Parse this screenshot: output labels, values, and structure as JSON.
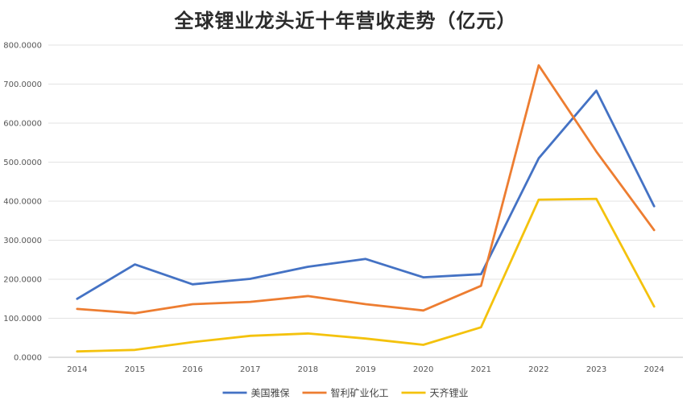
{
  "chart_data": {
    "type": "line",
    "title": "全球锂业龙头近十年营收走势（亿元）",
    "x": [
      "2014",
      "2015",
      "2016",
      "2017",
      "2018",
      "2019",
      "2020",
      "2021",
      "2022",
      "2023",
      "2024"
    ],
    "ylim": [
      0,
      800
    ],
    "yticks": [
      "0.0000",
      "100.0000",
      "200.0000",
      "300.0000",
      "400.0000",
      "500.0000",
      "600.0000",
      "700.0000",
      "800.0000"
    ],
    "grid": true,
    "legend_position": "bottom",
    "series": [
      {
        "name": "美国雅保",
        "color": "#4472c4",
        "values": [
          150,
          238,
          187,
          201,
          232,
          252,
          205,
          213,
          510,
          683,
          387
        ]
      },
      {
        "name": "智利矿业化工",
        "color": "#ed7d31",
        "values": [
          124,
          113,
          136,
          142,
          157,
          136,
          120,
          183,
          748,
          527,
          326
        ]
      },
      {
        "name": "天齐锂业",
        "color": "#f4c20d",
        "values": [
          15,
          19,
          39,
          55,
          61,
          48,
          32,
          77,
          404,
          406,
          130
        ]
      }
    ]
  }
}
